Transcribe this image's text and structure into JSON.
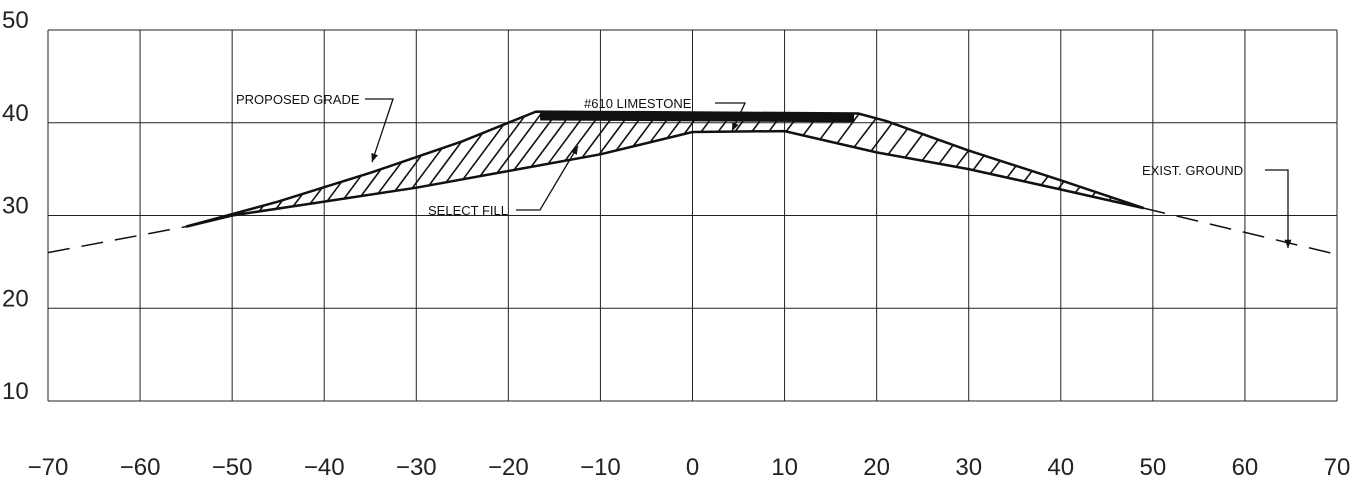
{
  "chart_data": {
    "type": "cross-section",
    "xlim": [
      -70,
      70
    ],
    "ylim": [
      10,
      50
    ],
    "x_ticks": [
      -70,
      -60,
      -50,
      -40,
      -30,
      -20,
      -10,
      0,
      10,
      20,
      30,
      40,
      50,
      60,
      70
    ],
    "x_tick_labels": [
      "−70",
      "−60",
      "−50",
      "−40",
      "−30",
      "−20",
      "−10",
      "0",
      "10",
      "20",
      "30",
      "40",
      "50",
      "60",
      "70"
    ],
    "y_ticks": [
      10,
      20,
      30,
      40,
      50
    ],
    "y_tick_labels": [
      "10",
      "20",
      "30",
      "40",
      "50"
    ],
    "grid": true,
    "existing_ground": [
      [
        -55,
        28.8
      ],
      [
        -50,
        30.0
      ],
      [
        -40,
        31.5
      ],
      [
        -30,
        33.0
      ],
      [
        -20,
        34.8
      ],
      [
        -10,
        36.6
      ],
      [
        0,
        39.0
      ],
      [
        10,
        39.1
      ],
      [
        20,
        36.8
      ],
      [
        30,
        35.0
      ],
      [
        40,
        32.8
      ],
      [
        49,
        30.8
      ]
    ],
    "existing_ground_dashed_left": [
      [
        -70,
        26.0
      ],
      [
        -55,
        28.8
      ]
    ],
    "existing_ground_dashed_right": [
      [
        49,
        30.8
      ],
      [
        70,
        25.8
      ]
    ],
    "proposed_grade": [
      [
        -55,
        28.8
      ],
      [
        -45,
        31.5
      ],
      [
        -35,
        34.6
      ],
      [
        -25,
        38.0
      ],
      [
        -17,
        41.2
      ],
      [
        18,
        41.0
      ],
      [
        21,
        40.2
      ],
      [
        30,
        37.0
      ],
      [
        40,
        33.8
      ],
      [
        49,
        30.8
      ]
    ],
    "limestone_layer": [
      [
        -16.5,
        41.2
      ],
      [
        17.5,
        41.0
      ],
      [
        17.5,
        40.1
      ],
      [
        -16.5,
        40.3
      ]
    ],
    "annotations": [
      {
        "text": "#610 LIMESTONE",
        "target": [
          4,
          41.0
        ]
      },
      {
        "text": "PROPOSED GRADE",
        "target": [
          -36,
          35.2
        ]
      },
      {
        "text": "SELECT FILL",
        "target": [
          -13,
          38.0
        ]
      },
      {
        "text": "EXIST. GROUND",
        "target": [
          64,
          27.5
        ]
      }
    ]
  }
}
